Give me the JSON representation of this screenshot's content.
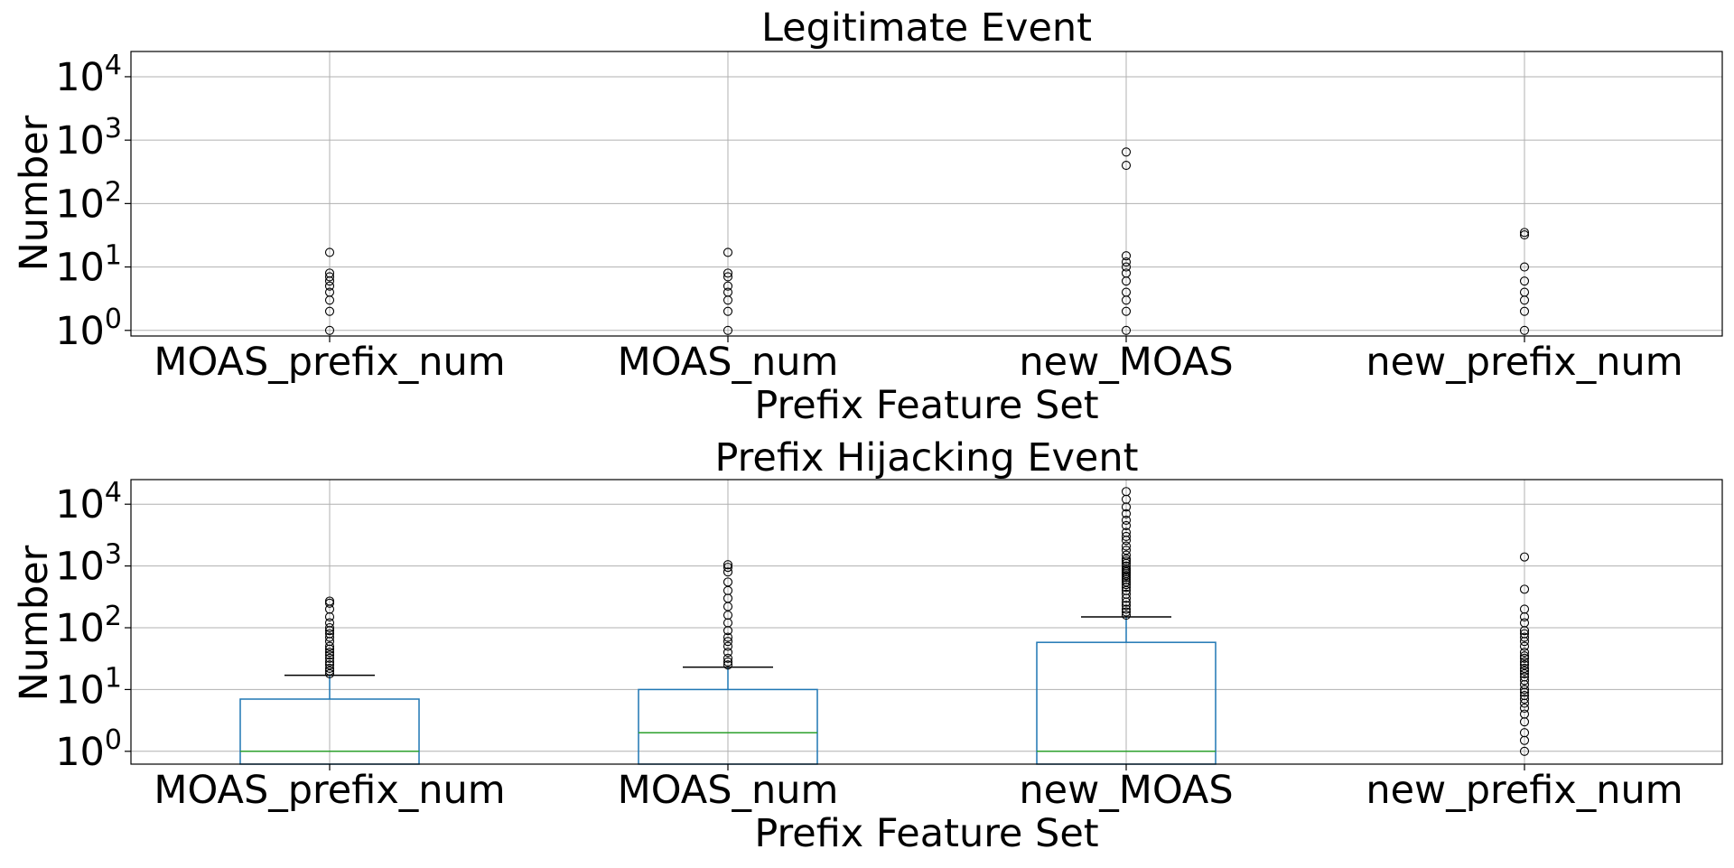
{
  "chart_data": [
    {
      "type": "box",
      "title": "Legitimate Event",
      "xlabel": "Prefix Feature Set",
      "ylabel": "Number",
      "yscale": "log",
      "ylim": [
        0.9,
        25000
      ],
      "yticks": [
        {
          "value": 1,
          "base": "10",
          "exp": "0"
        },
        {
          "value": 10,
          "base": "10",
          "exp": "1"
        },
        {
          "value": 100,
          "base": "10",
          "exp": "2"
        },
        {
          "value": 1000,
          "base": "10",
          "exp": "3"
        },
        {
          "value": 10000,
          "base": "10",
          "exp": "4"
        }
      ],
      "grid": true,
      "categories": [
        "MOAS_prefix_num",
        "MOAS_num",
        "new_MOAS",
        "new_prefix_num"
      ],
      "boxes": [
        {
          "q1": null,
          "median": null,
          "q3": null,
          "whisker_high": null,
          "fliers": [
            1,
            2,
            3,
            4,
            5,
            6,
            7,
            8,
            17
          ]
        },
        {
          "q1": null,
          "median": null,
          "q3": null,
          "whisker_high": null,
          "fliers": [
            1,
            2,
            3,
            4,
            5,
            7,
            8,
            17
          ]
        },
        {
          "q1": null,
          "median": null,
          "q3": null,
          "whisker_high": null,
          "fliers": [
            1,
            2,
            3,
            4,
            6,
            8,
            10,
            12,
            15,
            400,
            650
          ]
        },
        {
          "q1": null,
          "median": null,
          "q3": null,
          "whisker_high": null,
          "fliers": [
            1,
            2,
            3,
            4,
            6,
            10,
            32,
            35
          ]
        }
      ]
    },
    {
      "type": "box",
      "title": "Prefix Hijacking Event",
      "xlabel": "Prefix Feature Set",
      "ylabel": "Number",
      "yscale": "log",
      "ylim": [
        0.62,
        25000
      ],
      "yticks": [
        {
          "value": 1,
          "base": "10",
          "exp": "0"
        },
        {
          "value": 10,
          "base": "10",
          "exp": "1"
        },
        {
          "value": 100,
          "base": "10",
          "exp": "2"
        },
        {
          "value": 1000,
          "base": "10",
          "exp": "3"
        },
        {
          "value": 10000,
          "base": "10",
          "exp": "4"
        }
      ],
      "grid": true,
      "categories": [
        "MOAS_prefix_num",
        "MOAS_num",
        "new_MOAS",
        "new_prefix_num"
      ],
      "boxes": [
        {
          "q1": 0.62,
          "median": 1,
          "q3": 7,
          "whisker_high": 17,
          "fliers": [
            18,
            20,
            22,
            25,
            28,
            32,
            36,
            40,
            45,
            50,
            60,
            70,
            80,
            90,
            100,
            120,
            150,
            200,
            250,
            270
          ]
        },
        {
          "q1": 0.62,
          "median": 2,
          "q3": 10,
          "whisker_high": 23,
          "fliers": [
            25,
            28,
            32,
            40,
            50,
            60,
            70,
            90,
            120,
            160,
            220,
            300,
            400,
            550,
            800,
            950,
            1050
          ]
        },
        {
          "q1": 0.62,
          "median": 1,
          "q3": 58,
          "whisker_high": 150,
          "fliers": [
            160,
            180,
            200,
            230,
            260,
            300,
            350,
            400,
            450,
            500,
            550,
            600,
            650,
            700,
            750,
            800,
            850,
            900,
            1000,
            1100,
            1200,
            1300,
            1500,
            1800,
            2100,
            2600,
            3000,
            3500,
            4500,
            5500,
            7000,
            9000,
            12000,
            16000
          ]
        },
        {
          "q1": null,
          "median": null,
          "q3": null,
          "whisker_high": null,
          "fliers": [
            1,
            1.5,
            2,
            3,
            4,
            5,
            6,
            7,
            8,
            9,
            10,
            12,
            14,
            16,
            18,
            20,
            22,
            25,
            28,
            32,
            35,
            40,
            50,
            60,
            70,
            80,
            90,
            120,
            150,
            200,
            420,
            1400
          ]
        }
      ]
    }
  ]
}
